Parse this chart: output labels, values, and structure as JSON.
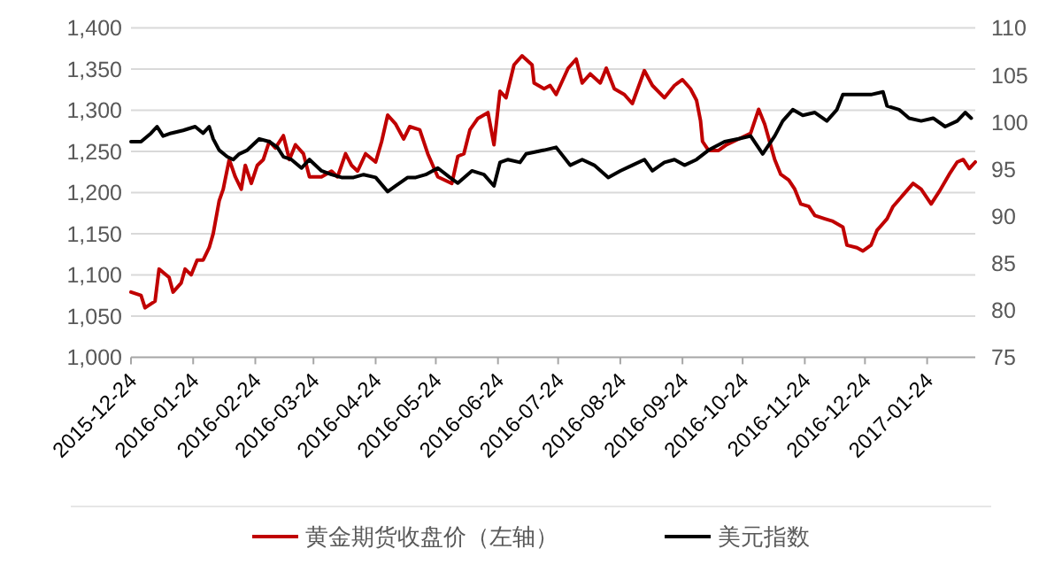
{
  "chart_data": {
    "type": "line",
    "xlim": [
      "2015-12-24",
      "2017-02-17"
    ],
    "xticks": [
      "2015-12-24",
      "2016-01-24",
      "2016-02-24",
      "2016-03-24",
      "2016-04-24",
      "2016-05-24",
      "2016-06-24",
      "2016-07-24",
      "2016-08-24",
      "2016-09-24",
      "2016-10-24",
      "2016-11-24",
      "2016-12-24",
      "2017-01-24"
    ],
    "ylim": [
      1000,
      1400
    ],
    "yticks": [
      {
        "value": 1000,
        "label": "1,000"
      },
      {
        "value": 1050,
        "label": "1,050"
      },
      {
        "value": 1100,
        "label": "1,100"
      },
      {
        "value": 1150,
        "label": "1,150"
      },
      {
        "value": 1200,
        "label": "1,200"
      },
      {
        "value": 1250,
        "label": "1,250"
      },
      {
        "value": 1300,
        "label": "1,300"
      },
      {
        "value": 1350,
        "label": "1,350"
      },
      {
        "value": 1400,
        "label": "1,400"
      }
    ],
    "y2lim": [
      75,
      110
    ],
    "y2ticks": [
      75,
      80,
      85,
      90,
      95,
      100,
      105,
      110
    ],
    "grid": "y",
    "legend": "bottom",
    "marker": "none",
    "line_style": "solid",
    "series": [
      {
        "name": "黄金期货收盘价（左轴）",
        "color": "#c00000",
        "axis": "y",
        "x": [
          "2015-12-24",
          "2015-12-29",
          "2015-12-31",
          "2016-01-05",
          "2016-01-07",
          "2016-01-12",
          "2016-01-14",
          "2016-01-18",
          "2016-01-20",
          "2016-01-23",
          "2016-01-26",
          "2016-01-29",
          "2016-02-01",
          "2016-02-03",
          "2016-02-06",
          "2016-02-08",
          "2016-02-11",
          "2016-02-14",
          "2016-02-17",
          "2016-02-19",
          "2016-02-22",
          "2016-02-25",
          "2016-02-28",
          "2016-03-02",
          "2016-03-05",
          "2016-03-09",
          "2016-03-12",
          "2016-03-15",
          "2016-03-19",
          "2016-03-22",
          "2016-03-28",
          "2016-04-02",
          "2016-04-05",
          "2016-04-09",
          "2016-04-12",
          "2016-04-15",
          "2016-04-19",
          "2016-04-24",
          "2016-04-27",
          "2016-04-30",
          "2016-05-04",
          "2016-05-08",
          "2016-05-11",
          "2016-05-16",
          "2016-05-20",
          "2016-05-25",
          "2016-06-01",
          "2016-06-04",
          "2016-06-07",
          "2016-06-10",
          "2016-06-14",
          "2016-06-19",
          "2016-06-22",
          "2016-06-25",
          "2016-06-28",
          "2016-07-02",
          "2016-07-06",
          "2016-07-11",
          "2016-07-12",
          "2016-07-17",
          "2016-07-20",
          "2016-07-23",
          "2016-07-29",
          "2016-08-02",
          "2016-08-05",
          "2016-08-09",
          "2016-08-14",
          "2016-08-17",
          "2016-08-21",
          "2016-08-26",
          "2016-08-30",
          "2016-09-05",
          "2016-09-09",
          "2016-09-15",
          "2016-09-20",
          "2016-09-24",
          "2016-09-28",
          "2016-10-01",
          "2016-10-03",
          "2016-10-04",
          "2016-10-07",
          "2016-10-12",
          "2016-10-16",
          "2016-10-22",
          "2016-10-28",
          "2016-11-01",
          "2016-11-04",
          "2016-11-09",
          "2016-11-12",
          "2016-11-16",
          "2016-11-19",
          "2016-11-22",
          "2016-11-26",
          "2016-11-29",
          "2016-12-04",
          "2016-12-08",
          "2016-12-13",
          "2016-12-15",
          "2016-12-20",
          "2016-12-23",
          "2016-12-27",
          "2016-12-30",
          "2017-01-04",
          "2017-01-07",
          "2017-01-12",
          "2017-01-17",
          "2017-01-21",
          "2017-01-26",
          "2017-01-30",
          "2017-02-04",
          "2017-02-08",
          "2017-02-11",
          "2017-02-14",
          "2017-02-17"
        ],
        "values": [
          1079,
          1075,
          1060,
          1068,
          1107,
          1097,
          1079,
          1090,
          1107,
          1100,
          1118,
          1118,
          1133,
          1150,
          1190,
          1204,
          1240,
          1219,
          1204,
          1233,
          1211,
          1233,
          1240,
          1262,
          1254,
          1269,
          1240,
          1258,
          1247,
          1219,
          1219,
          1226,
          1219,
          1247,
          1233,
          1226,
          1247,
          1237,
          1262,
          1294,
          1283,
          1265,
          1280,
          1276,
          1247,
          1219,
          1211,
          1244,
          1247,
          1276,
          1290,
          1297,
          1258,
          1323,
          1315,
          1355,
          1366,
          1355,
          1333,
          1326,
          1330,
          1319,
          1351,
          1362,
          1333,
          1344,
          1333,
          1351,
          1326,
          1319,
          1308,
          1348,
          1330,
          1315,
          1330,
          1337,
          1326,
          1312,
          1287,
          1262,
          1251,
          1251,
          1258,
          1265,
          1272,
          1301,
          1283,
          1240,
          1222,
          1215,
          1204,
          1186,
          1183,
          1172,
          1168,
          1165,
          1158,
          1136,
          1133,
          1129,
          1136,
          1154,
          1168,
          1183,
          1197,
          1211,
          1204,
          1186,
          1201,
          1222,
          1237,
          1240,
          1229,
          1237
        ]
      },
      {
        "name": "美元指数",
        "color": "#000000",
        "axis": "y2",
        "x": [
          "2015-12-24",
          "2015-12-29",
          "2016-01-03",
          "2016-01-06",
          "2016-01-09",
          "2016-01-13",
          "2016-01-19",
          "2016-01-25",
          "2016-01-29",
          "2016-02-01",
          "2016-02-03",
          "2016-02-06",
          "2016-02-10",
          "2016-02-13",
          "2016-02-16",
          "2016-02-20",
          "2016-02-26",
          "2016-03-02",
          "2016-03-06",
          "2016-03-09",
          "2016-03-13",
          "2016-03-18",
          "2016-03-22",
          "2016-03-28",
          "2016-04-02",
          "2016-04-07",
          "2016-04-13",
          "2016-04-18",
          "2016-04-24",
          "2016-04-30",
          "2016-05-04",
          "2016-05-10",
          "2016-05-14",
          "2016-05-19",
          "2016-05-25",
          "2016-05-31",
          "2016-06-04",
          "2016-06-11",
          "2016-06-17",
          "2016-06-22",
          "2016-06-25",
          "2016-06-29",
          "2016-07-05",
          "2016-07-08",
          "2016-07-17",
          "2016-07-23",
          "2016-07-30",
          "2016-08-05",
          "2016-08-11",
          "2016-08-18",
          "2016-08-24",
          "2016-08-30",
          "2016-09-05",
          "2016-09-09",
          "2016-09-15",
          "2016-09-20",
          "2016-09-25",
          "2016-10-01",
          "2016-10-07",
          "2016-10-15",
          "2016-10-22",
          "2016-10-28",
          "2016-11-03",
          "2016-11-09",
          "2016-11-13",
          "2016-11-18",
          "2016-11-23",
          "2016-11-29",
          "2016-12-05",
          "2016-12-10",
          "2016-12-13",
          "2016-12-20",
          "2016-12-27",
          "2017-01-02",
          "2017-01-04",
          "2017-01-10",
          "2017-01-15",
          "2017-01-21",
          "2017-01-27",
          "2017-02-02",
          "2017-02-08",
          "2017-02-12",
          "2017-02-15"
        ],
        "values": [
          97.9,
          97.9,
          98.8,
          99.5,
          98.5,
          98.8,
          99.1,
          99.5,
          98.8,
          99.5,
          98.2,
          97.0,
          96.3,
          96.0,
          96.6,
          97.0,
          98.2,
          97.9,
          97.3,
          96.3,
          96.0,
          95.1,
          96.0,
          94.8,
          94.4,
          94.1,
          94.1,
          94.4,
          94.1,
          92.6,
          93.2,
          94.1,
          94.1,
          94.4,
          95.1,
          94.1,
          93.5,
          94.8,
          94.4,
          93.2,
          95.7,
          96.0,
          95.7,
          96.6,
          97.0,
          97.3,
          95.4,
          96.0,
          95.4,
          94.1,
          94.8,
          95.4,
          96.0,
          94.8,
          95.7,
          96.0,
          95.4,
          96.0,
          97.0,
          97.9,
          98.2,
          98.5,
          96.6,
          98.5,
          100.1,
          101.3,
          100.7,
          101.0,
          100.1,
          101.3,
          102.9,
          102.9,
          102.9,
          103.2,
          101.7,
          101.3,
          100.4,
          100.1,
          100.4,
          99.5,
          100.1,
          101.0,
          100.4
        ]
      }
    ]
  }
}
